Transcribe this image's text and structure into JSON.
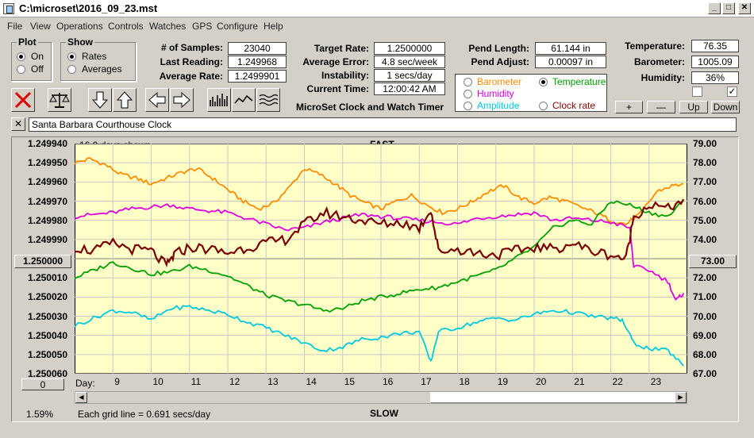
{
  "window": {
    "title": "C:\\microset\\2016_09_23.mst"
  },
  "menu": [
    "File",
    "View",
    "Operations",
    "Controls",
    "Watches",
    "GPS",
    "Configure",
    "Help"
  ],
  "plot_group": {
    "title": "Plot",
    "on_label": "On",
    "off_label": "Off",
    "selected": "On"
  },
  "show_group": {
    "title": "Show",
    "rates_label": "Rates",
    "averages_label": "Averages",
    "selected": "Rates"
  },
  "stats": {
    "samples_label": "# of Samples:",
    "samples": "23040",
    "last_reading_label": "Last Reading:",
    "last_reading": "1.249968",
    "average_rate_label": "Average Rate:",
    "average_rate": "1.2499901",
    "target_rate_label": "Target Rate:",
    "target_rate": "1.2500000",
    "average_error_label": "Average Error:",
    "average_error": "4.8 sec/week",
    "instability_label": "Instability:",
    "instability": "1 secs/day",
    "current_time_label": "Current Time:",
    "current_time": "12:00:42 AM",
    "pend_length_label": "Pend Length:",
    "pend_length": "61.144 in",
    "pend_adjust_label": "Pend Adjust:",
    "pend_adjust": "0.00097 in",
    "temperature_label": "Temperature:",
    "temperature": "76.35",
    "barometer_label": "Barometer:",
    "barometer": "1005.09",
    "humidity_label": "Humidity:",
    "humidity": "36%"
  },
  "app_name": "MicroSet Clock and Watch Timer",
  "sensor_select": {
    "barometer": "Barometer",
    "temperature": "Temperature",
    "humidity": "Humidity",
    "amplitude": "Amplitude",
    "clock_rate": "Clock rate",
    "selected": "Temperature",
    "colors": {
      "barometer": "#ff8c00",
      "temperature": "#00a000",
      "humidity": "#e000e0",
      "amplitude": "#00c8e0",
      "clock_rate": "#8b0000"
    }
  },
  "scale_buttons": {
    "plus": "+",
    "minus": "—",
    "up": "Up",
    "down": "Down"
  },
  "clock_name": "Santa Barbara Courthouse Clock",
  "clock_close": "✕",
  "chart": {
    "days_shown": "16.0 days shown",
    "fast_label": "FAST",
    "slow_label": "SLOW",
    "grid_note": "Each grid line = 0.691 secs/day",
    "percent": "1.59%",
    "left_button": "1.250000",
    "right_button": "73.00",
    "bottom_left_button": "0",
    "day_label": "Day:"
  },
  "chart_data": {
    "type": "line",
    "x_label": "Day:",
    "x_ticks": [
      "9",
      "10",
      "11",
      "12",
      "13",
      "14",
      "15",
      "16",
      "17",
      "18",
      "19",
      "20",
      "21",
      "22",
      "23"
    ],
    "xlim": [
      8.0,
      24.0
    ],
    "y_left_ticks": [
      "1.249940",
      "1.249950",
      "1.249960",
      "1.249970",
      "1.249980",
      "1.249990",
      "1.250000",
      "1.250010",
      "1.250020",
      "1.250030",
      "1.250040",
      "1.250050",
      "1.250060"
    ],
    "y_left_range": [
      1.24994,
      1.25006
    ],
    "y_right_ticks": [
      "79.00",
      "78.00",
      "77.00",
      "76.00",
      "75.00",
      "74.00",
      "73.00",
      "72.00",
      "71.00",
      "70.00",
      "69.00",
      "68.00",
      "67.00"
    ],
    "y_right_range": [
      67.0,
      79.0
    ],
    "series": [
      {
        "name": "Barometer",
        "color": "#ff8c00",
        "x": [
          8.0,
          8.4,
          8.8,
          9.2,
          9.6,
          10.0,
          10.4,
          10.8,
          11.2,
          11.6,
          12.0,
          12.4,
          12.8,
          13.2,
          13.6,
          14.0,
          14.4,
          14.8,
          15.2,
          15.6,
          16.0,
          16.4,
          16.8,
          17.2,
          17.6,
          18.0,
          18.4,
          18.8,
          19.2,
          19.6,
          20.0,
          20.4,
          20.8,
          21.2,
          21.6,
          22.0,
          22.4,
          22.8,
          23.2,
          23.6,
          23.9
        ],
        "y": [
          78.0,
          78.2,
          77.9,
          77.4,
          77.2,
          76.9,
          77.2,
          77.5,
          77.7,
          77.2,
          76.6,
          76.0,
          75.6,
          75.9,
          76.7,
          77.7,
          77.4,
          76.9,
          76.3,
          75.9,
          75.6,
          76.0,
          76.3,
          75.8,
          75.4,
          75.6,
          76.0,
          76.5,
          76.8,
          76.2,
          75.9,
          76.2,
          76.0,
          75.7,
          75.4,
          75.0,
          74.8,
          75.4,
          76.5,
          76.8,
          76.9
        ]
      },
      {
        "name": "Humidity",
        "color": "#e000e0",
        "x": [
          8.0,
          8.5,
          9.0,
          9.5,
          10.0,
          10.5,
          11.0,
          11.5,
          12.0,
          12.5,
          13.0,
          13.5,
          14.0,
          14.5,
          15.0,
          15.5,
          16.0,
          16.5,
          17.0,
          17.5,
          18.0,
          18.5,
          19.0,
          19.5,
          20.0,
          20.5,
          21.0,
          21.5,
          22.0,
          22.5,
          22.6,
          23.0,
          23.5,
          23.7,
          23.9
        ],
        "y": [
          75.2,
          75.3,
          75.4,
          75.6,
          75.7,
          75.8,
          75.6,
          75.5,
          75.4,
          75.1,
          74.8,
          74.5,
          74.6,
          74.9,
          75.1,
          75.3,
          75.2,
          75.1,
          75.0,
          74.9,
          74.8,
          75.1,
          75.2,
          75.3,
          75.4,
          75.0,
          75.1,
          75.0,
          74.9,
          74.6,
          72.6,
          72.4,
          71.8,
          70.8,
          71.2
        ]
      },
      {
        "name": "Temperature",
        "color": "#00a000",
        "x": [
          8.0,
          8.5,
          9.0,
          9.5,
          10.0,
          10.5,
          11.0,
          11.5,
          12.0,
          12.5,
          13.0,
          13.5,
          14.0,
          14.5,
          15.0,
          15.5,
          16.0,
          16.5,
          17.0,
          17.5,
          18.0,
          18.5,
          19.0,
          19.5,
          20.0,
          20.5,
          21.0,
          21.5,
          22.0,
          22.5,
          23.0,
          23.5,
          23.9
        ],
        "y": [
          72.0,
          72.4,
          72.8,
          72.5,
          72.2,
          72.3,
          72.6,
          72.4,
          72.1,
          71.6,
          71.1,
          70.8,
          70.6,
          70.3,
          70.4,
          70.8,
          71.0,
          71.2,
          71.4,
          71.5,
          71.8,
          72.1,
          72.4,
          73.0,
          73.6,
          74.6,
          75.0,
          74.8,
          76.0,
          75.8,
          75.4,
          75.2,
          76.0
        ]
      },
      {
        "name": "Amplitude",
        "color": "#00c8e0",
        "x": [
          8.0,
          8.5,
          9.0,
          9.5,
          10.0,
          10.5,
          11.0,
          11.5,
          12.0,
          12.5,
          13.0,
          13.5,
          14.0,
          14.5,
          15.0,
          15.5,
          16.0,
          16.5,
          17.0,
          17.3,
          17.5,
          18.0,
          18.5,
          19.0,
          19.5,
          20.0,
          20.5,
          21.0,
          21.5,
          22.0,
          22.3,
          22.6,
          23.0,
          23.5,
          23.9
        ],
        "y": [
          69.5,
          69.9,
          70.3,
          70.2,
          69.8,
          70.4,
          70.5,
          70.3,
          70.1,
          69.7,
          69.4,
          69.0,
          68.6,
          68.2,
          68.4,
          68.8,
          68.9,
          69.1,
          69.2,
          67.6,
          69.2,
          69.4,
          69.7,
          69.9,
          69.8,
          70.1,
          70.3,
          70.2,
          70.0,
          69.9,
          69.8,
          68.6,
          68.3,
          68.2,
          67.4
        ]
      },
      {
        "name": "Clock rate",
        "color": "#7a0000",
        "x": [
          8.0,
          8.5,
          9.0,
          9.5,
          10.0,
          10.4,
          10.6,
          11.0,
          11.5,
          12.0,
          12.5,
          13.0,
          13.5,
          14.0,
          14.5,
          15.0,
          15.5,
          16.0,
          16.5,
          17.0,
          17.3,
          17.5,
          18.0,
          18.5,
          19.0,
          19.5,
          20.0,
          20.5,
          21.0,
          21.5,
          22.0,
          22.4,
          22.6,
          23.0,
          23.5,
          23.9
        ],
        "y": [
          73.6,
          73.4,
          73.8,
          73.5,
          73.4,
          72.6,
          73.2,
          73.6,
          73.5,
          73.3,
          73.6,
          73.8,
          74.0,
          74.8,
          75.4,
          75.2,
          75.0,
          74.8,
          74.9,
          74.6,
          75.6,
          73.4,
          73.5,
          73.3,
          73.2,
          73.4,
          73.6,
          73.5,
          73.8,
          73.4,
          73.2,
          73.0,
          75.2,
          75.8,
          75.6,
          76.1
        ]
      }
    ]
  }
}
